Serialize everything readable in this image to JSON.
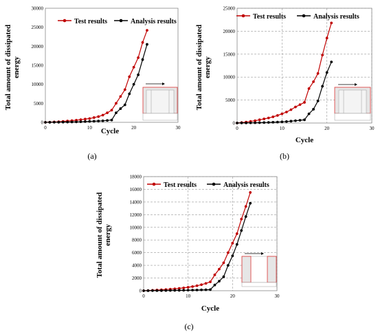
{
  "chart_data": [
    {
      "type": "line",
      "panel_label": "(a)",
      "xlabel": "Cycle",
      "ylabel": "Total amount of dissipated energy",
      "xlim": [
        0,
        30
      ],
      "ylim": [
        0,
        30000
      ],
      "xticks": [
        0,
        10,
        20,
        30
      ],
      "yticks": [
        0,
        5000,
        10000,
        15000,
        20000,
        25000,
        30000
      ],
      "grid": false,
      "legend": "top",
      "series": [
        {
          "name": "Test results",
          "color": "#c00000",
          "x": [
            0,
            1,
            2,
            3,
            4,
            5,
            6,
            7,
            8,
            9,
            10,
            11,
            12,
            13,
            14,
            15,
            16,
            17,
            18,
            19,
            20,
            21,
            22,
            23
          ],
          "y": [
            0,
            50,
            100,
            150,
            250,
            350,
            450,
            550,
            700,
            850,
            1000,
            1250,
            1500,
            1900,
            2500,
            3200,
            5000,
            6800,
            8600,
            12000,
            14500,
            17000,
            21000,
            24200
          ]
        },
        {
          "name": "Analysis results",
          "color": "#000000",
          "x": [
            0,
            1,
            2,
            3,
            4,
            5,
            6,
            7,
            8,
            9,
            10,
            11,
            12,
            13,
            14,
            15,
            16,
            17,
            18,
            19,
            20,
            21,
            22,
            23
          ],
          "y": [
            0,
            10,
            20,
            30,
            50,
            70,
            90,
            110,
            150,
            200,
            250,
            300,
            350,
            400,
            500,
            600,
            2500,
            3600,
            4600,
            7500,
            10000,
            12500,
            16500,
            20500
          ]
        }
      ]
    },
    {
      "type": "line",
      "panel_label": "(b)",
      "xlabel": "Cycle",
      "ylabel": "Total amount of dissipated energy",
      "xlim": [
        0,
        30
      ],
      "ylim": [
        0,
        25000
      ],
      "xticks": [
        0,
        10,
        20,
        30
      ],
      "yticks": [
        0,
        5000,
        10000,
        15000,
        20000,
        25000
      ],
      "grid": true,
      "legend": "top",
      "series": [
        {
          "name": "Test results",
          "color": "#c00000",
          "x": [
            0,
            1,
            2,
            3,
            4,
            5,
            6,
            7,
            8,
            9,
            10,
            11,
            12,
            13,
            14,
            15,
            16,
            17,
            18,
            19,
            20,
            21
          ],
          "y": [
            0,
            100,
            200,
            350,
            500,
            700,
            900,
            1100,
            1350,
            1650,
            2000,
            2400,
            2900,
            3500,
            4000,
            4500,
            7500,
            9000,
            10800,
            14800,
            18500,
            21800
          ]
        },
        {
          "name": "Analysis results",
          "color": "#000000",
          "x": [
            0,
            1,
            2,
            3,
            4,
            5,
            6,
            7,
            8,
            9,
            10,
            11,
            12,
            13,
            14,
            15,
            16,
            17,
            18,
            19,
            20,
            21
          ],
          "y": [
            0,
            10,
            20,
            40,
            60,
            80,
            100,
            130,
            170,
            210,
            260,
            320,
            400,
            500,
            600,
            700,
            2000,
            3000,
            4800,
            8000,
            11000,
            13300
          ]
        }
      ]
    },
    {
      "type": "line",
      "panel_label": "(c)",
      "xlabel": "Cycle",
      "ylabel": "Total amount of dissipated energy",
      "xlim": [
        0,
        30
      ],
      "ylim": [
        0,
        18000
      ],
      "xticks": [
        0,
        10,
        20,
        30
      ],
      "yticks": [
        0,
        2000,
        4000,
        6000,
        8000,
        10000,
        12000,
        14000,
        16000,
        18000
      ],
      "grid": true,
      "legend": "top",
      "series": [
        {
          "name": "Test results",
          "color": "#c00000",
          "x": [
            0,
            1,
            2,
            3,
            4,
            5,
            6,
            7,
            8,
            9,
            10,
            11,
            12,
            13,
            14,
            15,
            16,
            17,
            18,
            19,
            20,
            21,
            22,
            23,
            24
          ],
          "y": [
            0,
            30,
            60,
            100,
            140,
            190,
            240,
            300,
            370,
            450,
            540,
            650,
            780,
            950,
            1150,
            1400,
            2500,
            3400,
            4400,
            6000,
            7500,
            9000,
            11300,
            13300,
            15500
          ]
        },
        {
          "name": "Analysis results",
          "color": "#000000",
          "x": [
            0,
            1,
            2,
            3,
            4,
            5,
            6,
            7,
            8,
            9,
            10,
            11,
            12,
            13,
            14,
            15,
            16,
            17,
            18,
            19,
            20,
            21,
            22,
            23,
            24
          ],
          "y": [
            0,
            5,
            10,
            15,
            20,
            30,
            40,
            50,
            60,
            70,
            80,
            95,
            110,
            130,
            150,
            170,
            900,
            1500,
            2200,
            4000,
            5500,
            7300,
            9500,
            11700,
            13800
          ]
        }
      ]
    }
  ]
}
